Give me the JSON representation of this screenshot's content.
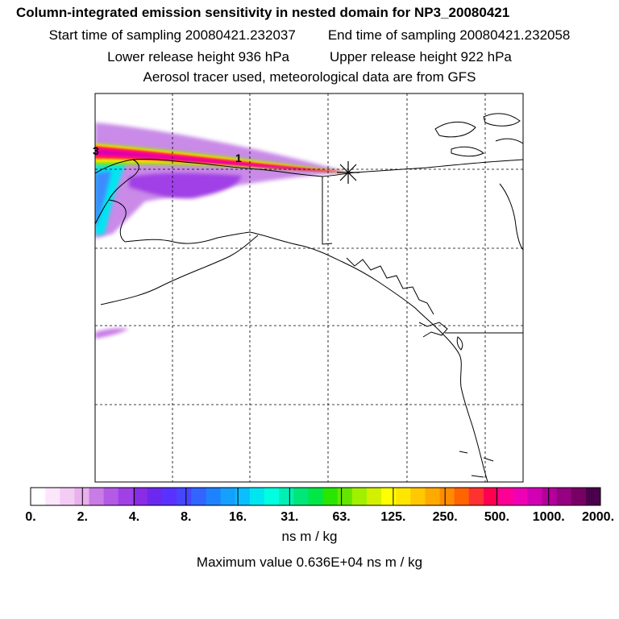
{
  "header": {
    "title": "Column-integrated emission sensitivity in nested domain for NP3_20080421",
    "start_label": "Start time of sampling 20080421.232037",
    "end_label": "End time of sampling 20080421.232058",
    "lower_label": "Lower release height  936 hPa",
    "upper_label": "Upper release height  922 hPa",
    "info": "Aerosol tracer used, meteorological data are from GFS"
  },
  "map": {
    "labels": [
      {
        "text": "3",
        "color": "#000000"
      },
      {
        "text": "1",
        "color": "#000000"
      }
    ],
    "release_marker": "star-icon",
    "grid": "dashed"
  },
  "colorbar": {
    "colors": [
      "#ffffff",
      "#fbe6fb",
      "#f3ccf3",
      "#e8b0ec",
      "#c97be6",
      "#b35be6",
      "#a040e6",
      "#8a2be6",
      "#6d28f0",
      "#5a32ff",
      "#4646ff",
      "#3264ff",
      "#1e82ff",
      "#14a0ff",
      "#0abeff",
      "#00e6f0",
      "#00ffe0",
      "#00f0b4",
      "#00e678",
      "#00e646",
      "#28e600",
      "#64e600",
      "#a0f000",
      "#d2f000",
      "#ffff00",
      "#ffe600",
      "#ffc800",
      "#ffaa00",
      "#ff8c00",
      "#ff6400",
      "#ff3232",
      "#ff0050",
      "#ff0096",
      "#f000b4",
      "#d200b4",
      "#b4009b",
      "#960082",
      "#780064",
      "#4b004b"
    ],
    "ticks": [
      "0.",
      "2.",
      "4.",
      "8.",
      "16.",
      "31.",
      "63.",
      "125.",
      "250.",
      "500.",
      "1000.",
      "2000."
    ],
    "units": "ns m / kg",
    "maximum": "Maximum value  0.636E+04 ns m / kg"
  }
}
